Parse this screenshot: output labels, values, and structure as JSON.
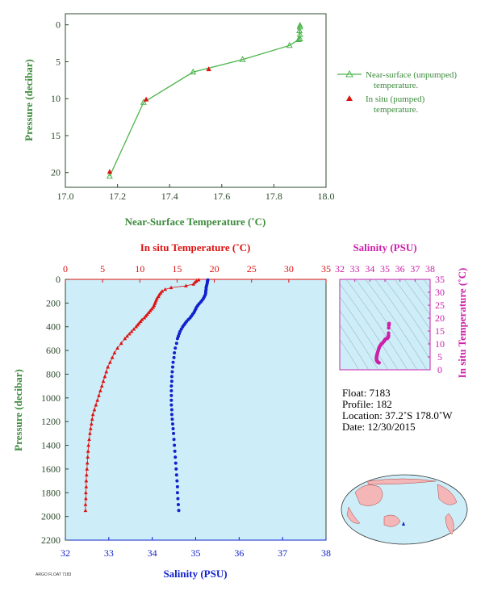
{
  "colors": {
    "green": "#4ab44a",
    "greenText": "#3b8a3b",
    "red": "#dd1111",
    "blue": "#1122cc",
    "magenta": "#cc22aa",
    "panelBg": "#cdeef8",
    "axis": "#2c4a2c"
  },
  "chart_data": [
    {
      "type": "line",
      "id": "near-surface",
      "xlabel": "Near-Surface Temperature (˚C)",
      "ylabel": "Pressure (decibar)",
      "xlim": [
        17.0,
        18.0
      ],
      "ylim": [
        22,
        -1.5
      ],
      "xticks": [
        "17.0",
        "17.2",
        "17.4",
        "17.6",
        "17.8",
        "18.0"
      ],
      "yticks": [
        "0",
        "5",
        "10",
        "15",
        "20"
      ],
      "series": [
        {
          "name": "Near-surface (unpumped) temperature.",
          "marker": "triangle-open",
          "x": [
            17.9,
            17.9,
            17.898,
            17.9,
            17.9,
            17.895,
            17.86,
            17.68,
            17.49,
            17.3,
            17.17
          ],
          "y": [
            0.1,
            0.3,
            0.8,
            1.3,
            1.9,
            2.0,
            2.8,
            4.7,
            6.4,
            10.5,
            20.5
          ]
        },
        {
          "name": "In situ (pumped) temperature.",
          "marker": "triangle-filled",
          "x": [
            17.55,
            17.31,
            17.17
          ],
          "y": [
            6.0,
            10.1,
            19.9
          ]
        }
      ]
    },
    {
      "type": "scatter",
      "id": "profile",
      "x_top_label": "In situ Temperature (˚C)",
      "x_bottom_label": "Salinity (PSU)",
      "ylabel": "Pressure (decibar)",
      "temp_lim": [
        0,
        35
      ],
      "sal_lim": [
        32,
        38
      ],
      "ylim": [
        0,
        2200
      ],
      "temp_ticks": [
        "0",
        "5",
        "10",
        "15",
        "20",
        "25",
        "30",
        "35"
      ],
      "sal_ticks": [
        "32",
        "33",
        "34",
        "35",
        "36",
        "37",
        "38"
      ],
      "p_ticks": [
        "0",
        "200",
        "400",
        "600",
        "800",
        "1000",
        "1200",
        "1400",
        "1600",
        "1800",
        "2000",
        "2200"
      ],
      "temperature": {
        "p": [
          5,
          15,
          25,
          40,
          55,
          70,
          85,
          100,
          115,
          130,
          145,
          160,
          175,
          190,
          205,
          220,
          235,
          250,
          265,
          280,
          295,
          310,
          325,
          340,
          355,
          370,
          385,
          400,
          420,
          440,
          460,
          480,
          500,
          540,
          580,
          620,
          660,
          700,
          740,
          780,
          820,
          860,
          900,
          940,
          980,
          1020,
          1060,
          1100,
          1140,
          1180,
          1220,
          1260,
          1300,
          1350,
          1400,
          1450,
          1500,
          1550,
          1600,
          1650,
          1700,
          1750,
          1800,
          1850,
          1900,
          1950
        ],
        "t": [
          17.9,
          17.6,
          17.4,
          17.2,
          16.2,
          14.2,
          13.4,
          13.0,
          12.8,
          12.6,
          12.5,
          12.3,
          12.2,
          12.1,
          12.0,
          11.9,
          11.8,
          11.6,
          11.4,
          11.2,
          11.0,
          10.8,
          10.6,
          10.3,
          10.1,
          9.9,
          9.7,
          9.5,
          9.2,
          8.9,
          8.6,
          8.3,
          8.0,
          7.5,
          7.0,
          6.6,
          6.3,
          6.0,
          5.7,
          5.5,
          5.3,
          5.1,
          4.9,
          4.7,
          4.5,
          4.3,
          4.1,
          3.9,
          3.7,
          3.6,
          3.5,
          3.4,
          3.3,
          3.2,
          3.1,
          3.05,
          3.0,
          2.95,
          2.9,
          2.85,
          2.8,
          2.8,
          2.75,
          2.75,
          2.7,
          2.7
        ]
      },
      "salinity": {
        "p": [
          5,
          15,
          25,
          40,
          55,
          70,
          85,
          100,
          115,
          130,
          145,
          160,
          175,
          190,
          205,
          220,
          235,
          250,
          265,
          280,
          295,
          310,
          325,
          340,
          355,
          370,
          385,
          400,
          420,
          440,
          460,
          480,
          500,
          540,
          580,
          620,
          660,
          700,
          740,
          780,
          820,
          860,
          900,
          940,
          980,
          1020,
          1060,
          1100,
          1140,
          1180,
          1220,
          1260,
          1300,
          1350,
          1400,
          1450,
          1500,
          1550,
          1600,
          1650,
          1700,
          1750,
          1800,
          1850,
          1900,
          1950
        ],
        "s": [
          35.28,
          35.27,
          35.27,
          35.26,
          35.25,
          35.24,
          35.24,
          35.23,
          35.23,
          35.22,
          35.2,
          35.18,
          35.15,
          35.12,
          35.08,
          35.05,
          35.02,
          35.0,
          34.98,
          34.96,
          34.93,
          34.9,
          34.87,
          34.83,
          34.79,
          34.76,
          34.73,
          34.7,
          34.67,
          34.64,
          34.62,
          34.6,
          34.58,
          34.56,
          34.53,
          34.51,
          34.5,
          34.48,
          34.47,
          34.46,
          34.45,
          34.45,
          34.44,
          34.44,
          34.44,
          34.44,
          34.44,
          34.45,
          34.45,
          34.46,
          34.47,
          34.48,
          34.49,
          34.5,
          34.51,
          34.52,
          34.53,
          34.54,
          34.55,
          34.56,
          34.57,
          34.58,
          34.58,
          34.59,
          34.6,
          34.61
        ]
      }
    },
    {
      "type": "scatter",
      "id": "ts-diagram",
      "title": "Salinity (PSU)",
      "ylabel": "In situ Temperature (˚C)",
      "xlim": [
        32,
        38
      ],
      "ylim": [
        0,
        35
      ],
      "xticks": [
        "32",
        "33",
        "34",
        "35",
        "36",
        "37",
        "38"
      ],
      "yticks": [
        "0",
        "5",
        "10",
        "15",
        "20",
        "25",
        "30",
        "35"
      ],
      "points_note": "pairs of salinity/temperature from profile"
    }
  ],
  "info": {
    "float": "Float:  7183",
    "profile": "Profile:  182",
    "location": "Location:  37.2˚S  178.0˚W",
    "date": "Date:  12/30/2015"
  },
  "footer_text": "ARGO FLOAT 7183"
}
